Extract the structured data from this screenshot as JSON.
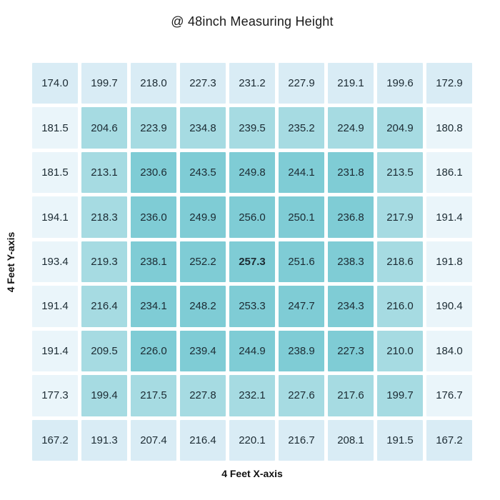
{
  "chart_data": {
    "type": "heatmap",
    "title": "@ 48inch Measuring Height",
    "xlabel": "4 Feet X-axis",
    "ylabel": "4 Feet Y-axis",
    "rows": 9,
    "cols": 9,
    "values": [
      [
        174.0,
        199.7,
        218.0,
        227.3,
        231.2,
        227.9,
        219.1,
        199.6,
        172.9
      ],
      [
        181.5,
        204.6,
        223.9,
        234.8,
        239.5,
        235.2,
        224.9,
        204.9,
        180.8
      ],
      [
        181.5,
        213.1,
        230.6,
        243.5,
        249.8,
        244.1,
        231.8,
        213.5,
        186.1
      ],
      [
        194.1,
        218.3,
        236.0,
        249.9,
        256.0,
        250.1,
        236.8,
        217.9,
        191.4
      ],
      [
        193.4,
        219.3,
        238.1,
        252.2,
        257.3,
        251.6,
        238.3,
        218.6,
        191.8
      ],
      [
        191.4,
        216.4,
        234.1,
        248.2,
        253.3,
        247.7,
        234.3,
        216.0,
        190.4
      ],
      [
        191.4,
        209.5,
        226.0,
        239.4,
        244.9,
        238.9,
        227.3,
        210.0,
        184.0
      ],
      [
        177.3,
        199.4,
        217.5,
        227.8,
        232.1,
        227.6,
        217.6,
        199.7,
        176.7
      ],
      [
        167.2,
        191.3,
        207.4,
        216.4,
        220.1,
        216.7,
        208.1,
        191.5,
        167.2
      ]
    ],
    "value_decimals": 1,
    "bold_max_value": 257.3,
    "value_text_color": "#1c2b33",
    "cell_colors": {
      "vl": "#eaf5fa",
      "l": "#d9ecf5",
      "m": "#a6dbe2",
      "d": "#7fccd5"
    },
    "color_level_grid": [
      [
        "l",
        "l",
        "l",
        "l",
        "l",
        "l",
        "l",
        "l",
        "l"
      ],
      [
        "vl",
        "m",
        "m",
        "m",
        "m",
        "m",
        "m",
        "m",
        "vl"
      ],
      [
        "vl",
        "m",
        "d",
        "d",
        "d",
        "d",
        "d",
        "m",
        "vl"
      ],
      [
        "vl",
        "m",
        "d",
        "d",
        "d",
        "d",
        "d",
        "m",
        "vl"
      ],
      [
        "vl",
        "m",
        "d",
        "d",
        "d",
        "d",
        "d",
        "m",
        "vl"
      ],
      [
        "vl",
        "m",
        "d",
        "d",
        "d",
        "d",
        "d",
        "m",
        "vl"
      ],
      [
        "vl",
        "m",
        "d",
        "d",
        "d",
        "d",
        "d",
        "m",
        "vl"
      ],
      [
        "vl",
        "m",
        "m",
        "m",
        "m",
        "m",
        "m",
        "m",
        "vl"
      ],
      [
        "l",
        "l",
        "l",
        "l",
        "l",
        "l",
        "l",
        "l",
        "l"
      ]
    ],
    "legend": "none",
    "grid_gap_color": "#ffffff"
  }
}
